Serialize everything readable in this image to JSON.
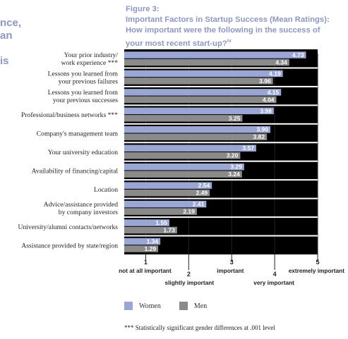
{
  "left_fragments": [
    "nce,",
    "an",
    "is"
  ],
  "figure": {
    "label": "Figure 3:",
    "title_line1": "Important Factors in Startup Success (Mean Ratings):",
    "title_line2": "How important were the following in the success of",
    "title_line3": "your most recent start-up?",
    "title_superscript": "iv"
  },
  "chart_data": {
    "type": "bar",
    "orientation": "horizontal",
    "categories": [
      [
        "Your prior industry/",
        "work experience ***"
      ],
      [
        "Lessons you learned from",
        "your previous failures"
      ],
      [
        "Lessons you learned from",
        "your previous successes"
      ],
      [
        "Professional/business networks ***"
      ],
      [
        "Company's management team"
      ],
      [
        "Your university education"
      ],
      [
        "Availability of financing/capital"
      ],
      [
        "Location"
      ],
      [
        "Advice/assistance provided",
        "by company investors"
      ],
      [
        "University/alumni contacts/networks"
      ],
      [
        "Assistance provided by state/region"
      ]
    ],
    "series": [
      {
        "name": "Women",
        "color": "#9aa6d4",
        "values": [
          4.73,
          4.19,
          4.15,
          3.98,
          3.9,
          3.57,
          3.29,
          2.54,
          2.41,
          1.55,
          1.34
        ]
      },
      {
        "name": "Men",
        "color": "#8a8a8a",
        "values": [
          4.34,
          3.96,
          4.04,
          3.25,
          3.82,
          3.2,
          3.24,
          2.49,
          2.19,
          1.73,
          1.29
        ]
      }
    ],
    "value_labels": [
      [
        "4.73",
        "4.34"
      ],
      [
        "4.19",
        "3.96"
      ],
      [
        "4.15",
        "4.04"
      ],
      [
        "3.98",
        "3.25"
      ],
      [
        "3.90",
        "3.82"
      ],
      [
        "3.57",
        "3.20"
      ],
      [
        "3.29",
        "3.24"
      ],
      [
        "2.54",
        "2.49"
      ],
      [
        "2.41",
        "2.19"
      ],
      [
        "1.55",
        "1.73"
      ],
      [
        "1.34",
        "1.29"
      ]
    ],
    "xlim": [
      0.5,
      5
    ],
    "xticks": [
      1,
      2,
      3,
      4,
      5
    ],
    "tick_labels": [
      "1",
      "2",
      "3",
      "4",
      "5"
    ],
    "tick_captions": [
      "not at all important",
      "slightly important",
      "important",
      "very important",
      "extremely important"
    ],
    "legend_placement": "bottom"
  },
  "legend": {
    "women": "Women",
    "men": "Men",
    "women_color": "#9aa6d4",
    "men_color": "#8a8a8a"
  },
  "footnote": "*** Statistically significant gender differences at .001 level"
}
